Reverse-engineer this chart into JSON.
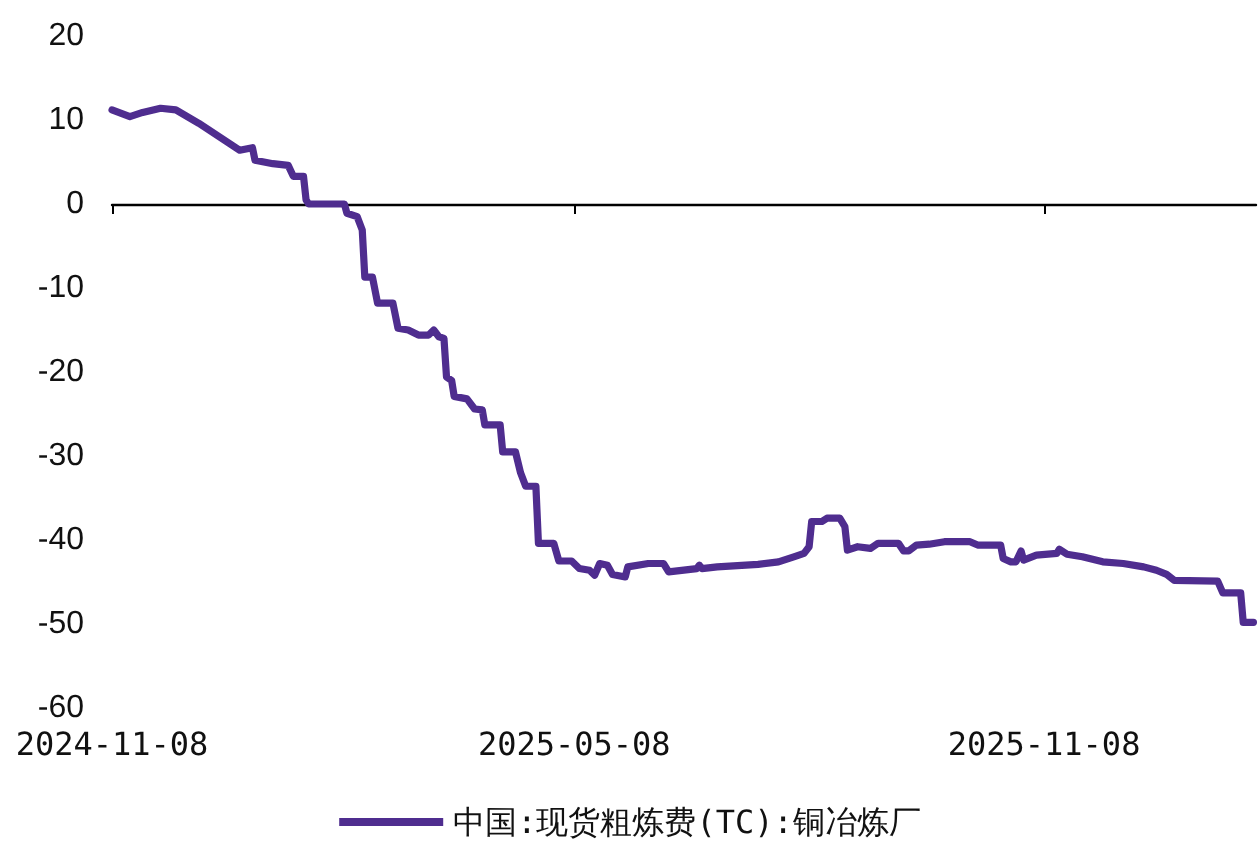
{
  "chart_data": {
    "type": "line",
    "x": [
      "2024-11-08",
      "2024-11-15",
      "2024-11-20",
      "2024-11-27",
      "2024-12-03",
      "2024-12-12",
      "2024-12-20",
      "2024-12-28",
      "2025-01-02",
      "2025-01-03",
      "2025-01-10",
      "2025-01-16",
      "2025-01-18",
      "2025-01-22",
      "2025-01-23",
      "2025-01-24",
      "2025-02-07",
      "2025-02-08",
      "2025-02-12",
      "2025-02-14",
      "2025-02-15",
      "2025-02-18",
      "2025-02-20",
      "2025-02-26",
      "2025-02-28",
      "2025-03-04",
      "2025-03-08",
      "2025-03-12",
      "2025-03-14",
      "2025-03-16",
      "2025-03-18",
      "2025-03-19",
      "2025-03-21",
      "2025-03-22",
      "2025-03-27",
      "2025-03-30",
      "2025-04-02",
      "2025-04-03",
      "2025-04-09",
      "2025-04-10",
      "2025-04-15",
      "2025-04-17",
      "2025-04-19",
      "2025-04-23",
      "2025-04-24",
      "2025-04-30",
      "2025-05-02",
      "2025-05-07",
      "2025-05-10",
      "2025-05-14",
      "2025-05-16",
      "2025-05-18",
      "2025-05-21",
      "2025-05-23",
      "2025-05-28",
      "2025-05-29",
      "2025-06-06",
      "2025-06-12",
      "2025-06-14",
      "2025-06-25",
      "2025-06-26",
      "2025-06-27",
      "2025-07-03",
      "2025-07-19",
      "2025-07-27",
      "2025-08-02",
      "2025-08-06",
      "2025-08-08",
      "2025-08-09",
      "2025-08-13",
      "2025-08-15",
      "2025-08-20",
      "2025-08-22",
      "2025-08-23",
      "2025-08-27",
      "2025-09-01",
      "2025-09-04",
      "2025-09-12",
      "2025-09-14",
      "2025-09-16",
      "2025-09-19",
      "2025-09-24",
      "2025-09-30",
      "2025-10-10",
      "2025-10-13",
      "2025-10-22",
      "2025-10-23",
      "2025-10-26",
      "2025-10-28",
      "2025-10-30",
      "2025-10-31",
      "2025-11-05",
      "2025-11-13",
      "2025-11-14",
      "2025-11-17",
      "2025-11-23",
      "2025-12-01",
      "2025-12-09",
      "2025-12-17",
      "2025-12-22",
      "2025-12-26",
      "2025-12-29",
      "2026-01-15",
      "2026-01-17",
      "2026-01-24",
      "2026-01-25",
      "2026-01-29"
    ],
    "series": [
      {
        "name": "中国:现货粗炼费(TC):铜冶炼厂",
        "color": "#4f2d8f",
        "values": [
          11.2,
          10.4,
          10.9,
          11.4,
          11.2,
          9.6,
          8.0,
          6.4,
          6.7,
          5.2,
          4.8,
          4.6,
          3.3,
          3.3,
          0.5,
          0,
          0,
          -1.1,
          -1.5,
          -3.1,
          -8.7,
          -8.7,
          -11.8,
          -11.8,
          -14.8,
          -15.0,
          -15.6,
          -15.6,
          -15.0,
          -15.8,
          -16.0,
          -20.6,
          -21.0,
          -22.9,
          -23.2,
          -24.4,
          -24.5,
          -26.3,
          -26.3,
          -29.5,
          -29.5,
          -32.0,
          -33.6,
          -33.6,
          -40.4,
          -40.4,
          -42.5,
          -42.5,
          -43.4,
          -43.6,
          -44.2,
          -42.8,
          -43.0,
          -44.1,
          -44.4,
          -43.2,
          -42.8,
          -42.8,
          -43.8,
          -43.4,
          -43.0,
          -43.4,
          -43.2,
          -42.9,
          -42.6,
          -42.0,
          -41.6,
          -40.8,
          -37.8,
          -37.8,
          -37.4,
          -37.4,
          -38.4,
          -41.2,
          -40.8,
          -41.0,
          -40.4,
          -40.4,
          -41.3,
          -41.3,
          -40.6,
          -40.5,
          -40.2,
          -40.2,
          -40.6,
          -40.6,
          -42.2,
          -42.6,
          -42.6,
          -41.3,
          -42.4,
          -41.8,
          -41.6,
          -41.1,
          -41.7,
          -42.0,
          -42.6,
          -42.8,
          -43.2,
          -43.6,
          -44.1,
          -44.8,
          -44.9,
          -46.3,
          -46.3,
          -49.8,
          -49.8
        ]
      }
    ],
    "xlim": [
      "2024-11-08",
      "2026-01-30"
    ],
    "xticks": [
      "2024-11-08",
      "2025-05-08",
      "2025-11-08"
    ],
    "ylim": [
      -60,
      20
    ],
    "yticks": [
      -60,
      -50,
      -40,
      -30,
      -20,
      -10,
      0,
      10,
      20
    ],
    "legend": "bottom",
    "marker": "none",
    "line_style": "solid"
  }
}
